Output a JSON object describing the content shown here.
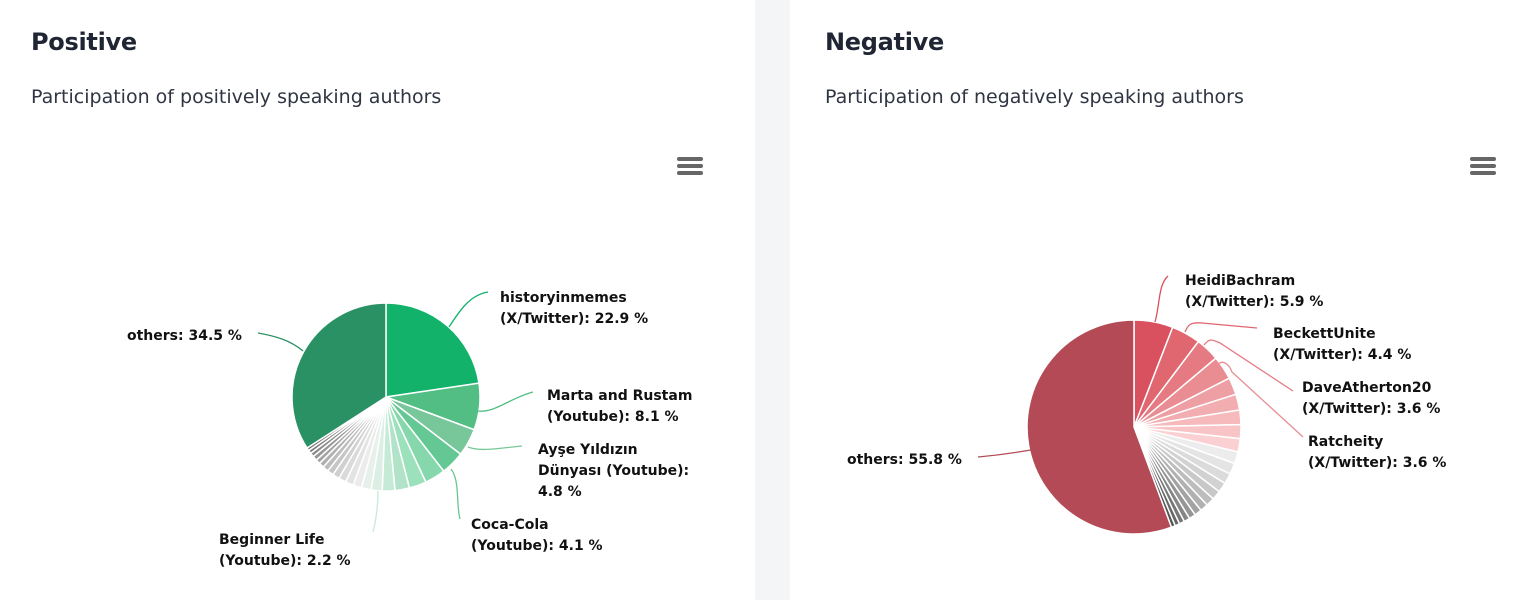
{
  "panels": {
    "positive": {
      "title": "Positive",
      "subtitle": "Participation of positively speaking authors",
      "menu_icon": "hamburger-menu-icon"
    },
    "negative": {
      "title": "Negative",
      "subtitle": "Participation of negatively speaking authors",
      "menu_icon": "hamburger-menu-icon"
    }
  },
  "chart_data": [
    {
      "type": "pie",
      "title": "Positive",
      "subtitle": "Participation of positively speaking authors",
      "labeled_slices": [
        {
          "label": "historyinmemes (X/Twitter)",
          "value": 22.9
        },
        {
          "label": "Marta and Rustam (Youtube)",
          "value": 8.1
        },
        {
          "label": "Ayşe Yıldızın Dünyası (Youtube)",
          "value": 4.8
        },
        {
          "label": "Coca-Cola (Youtube)",
          "value": 4.1
        },
        {
          "label": "Beginner Life (Youtube)",
          "value": 2.2
        },
        {
          "label": "others",
          "value": 34.5
        }
      ],
      "colors": {
        "primary": "#13b26b",
        "others": "#2a9165"
      }
    },
    {
      "type": "pie",
      "title": "Negative",
      "subtitle": "Participation of negatively speaking authors",
      "labeled_slices": [
        {
          "label": "HeidiBachram (X/Twitter)",
          "value": 5.9
        },
        {
          "label": "BeckettUnite (X/Twitter)",
          "value": 4.4
        },
        {
          "label": "DaveAtherton20 (X/Twitter)",
          "value": 3.6
        },
        {
          "label": "Ratcheity (X/Twitter)",
          "value": 3.6
        },
        {
          "label": "others",
          "value": 55.8
        }
      ],
      "colors": {
        "primary": "#d9505e",
        "others": "#b34a55"
      }
    }
  ],
  "labels": {
    "pos": {
      "l1a": "historyinmemes",
      "l1b": "(X/Twitter): 22.9 %",
      "l2a": "Marta and Rustam",
      "l2b": "(Youtube): 8.1 %",
      "l3a": "Ayşe Yıldızın",
      "l3b": "Dünyası (Youtube):",
      "l3c": "4.8 %",
      "l4a": "Coca-Cola",
      "l4b": "(Youtube): 4.1 %",
      "l5a": "Beginner Life",
      "l5b": "(Youtube): 2.2 %",
      "others": "others: 34.5 %"
    },
    "neg": {
      "l1a": "HeidiBachram",
      "l1b": "(X/Twitter): 5.9 %",
      "l2a": "BeckettUnite",
      "l2b": "(X/Twitter): 4.4 %",
      "l3a": "DaveAtherton20",
      "l3b": "(X/Twitter): 3.6 %",
      "l4a": "Ratcheity",
      "l4b": "(X/Twitter): 3.6 %",
      "others": "others: 55.8 %"
    }
  }
}
